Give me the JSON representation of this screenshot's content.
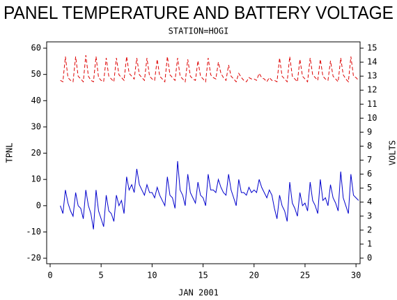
{
  "chart_data": {
    "type": "line",
    "title": "PANEL TEMPERATURE AND BATTERY VOLTAGE",
    "subtitle": "STATION=HOGI",
    "xlabel": "JAN 2001",
    "ylabel": "TPNL",
    "y2label": "VOLTS",
    "x": [
      1,
      1.25,
      1.5,
      1.75,
      2,
      2.25,
      2.5,
      2.75,
      3,
      3.25,
      3.5,
      3.75,
      4,
      4.25,
      4.5,
      4.75,
      5,
      5.25,
      5.5,
      5.75,
      6,
      6.25,
      6.5,
      6.75,
      7,
      7.25,
      7.5,
      7.75,
      8,
      8.25,
      8.5,
      8.75,
      9,
      9.25,
      9.5,
      9.75,
      10,
      10.25,
      10.5,
      10.75,
      11,
      11.25,
      11.5,
      11.75,
      12,
      12.25,
      12.5,
      12.75,
      13,
      13.25,
      13.5,
      13.75,
      14,
      14.25,
      14.5,
      14.75,
      15,
      15.25,
      15.5,
      15.75,
      16,
      16.25,
      16.5,
      16.75,
      17,
      17.25,
      17.5,
      17.75,
      18,
      18.25,
      18.5,
      18.75,
      19,
      19.25,
      19.5,
      19.75,
      20,
      20.25,
      20.5,
      20.75,
      21,
      21.25,
      21.5,
      21.75,
      22,
      22.25,
      22.5,
      22.75,
      23,
      23.25,
      23.5,
      23.75,
      24,
      24.25,
      24.5,
      24.75,
      25,
      25.25,
      25.5,
      25.75,
      26,
      26.25,
      26.5,
      26.75,
      27,
      27.25,
      27.5,
      27.75,
      28,
      28.25,
      28.5,
      28.75,
      29,
      29.25,
      29.5,
      29.75,
      30,
      30.25
    ],
    "series": [
      {
        "name": "TPNL",
        "color": "#0000cc",
        "axis": "y",
        "line_style": "solid",
        "values": [
          0,
          -3,
          6,
          1,
          -2,
          -4,
          5,
          0,
          -1,
          -5,
          6,
          0,
          -3,
          -9,
          6,
          -2,
          -5,
          -8,
          4,
          -2,
          -3,
          -6,
          4,
          0,
          2,
          -3,
          11,
          6,
          8,
          5,
          14,
          8,
          6,
          4,
          8,
          5,
          5,
          3,
          7,
          4,
          2,
          0,
          11,
          4,
          3,
          -1,
          17,
          6,
          4,
          0,
          12,
          5,
          3,
          1,
          9,
          4,
          3,
          0,
          12,
          6,
          6,
          5,
          10,
          7,
          5,
          4,
          12,
          6,
          3,
          0,
          10,
          5,
          5,
          4,
          7,
          5,
          6,
          5,
          10,
          7,
          5,
          3,
          6,
          4,
          -1,
          -5,
          4,
          0,
          -2,
          -6,
          9,
          1,
          -1,
          -4,
          5,
          0,
          1,
          -2,
          9,
          2,
          0,
          -3,
          10,
          2,
          3,
          0,
          8,
          3,
          1,
          -2,
          13,
          3,
          0,
          -3,
          12,
          4,
          3,
          2
        ]
      },
      {
        "name": "VOLTS",
        "color": "#dd0000",
        "axis": "y2",
        "line_style": "dashed",
        "values": [
          12.7,
          12.6,
          14.4,
          12.9,
          12.7,
          12.6,
          14.4,
          13.0,
          12.8,
          12.6,
          14.5,
          13.0,
          12.7,
          12.6,
          14.4,
          12.9,
          12.7,
          12.6,
          14.3,
          13.0,
          12.8,
          12.6,
          14.3,
          13.1,
          12.9,
          12.7,
          14.4,
          13.2,
          13.0,
          12.8,
          14.3,
          13.1,
          12.9,
          12.7,
          14.3,
          13.0,
          12.8,
          12.7,
          14.2,
          13.0,
          12.8,
          12.6,
          14.4,
          13.1,
          12.9,
          12.7,
          14.3,
          13.0,
          12.8,
          12.6,
          14.2,
          13.0,
          12.8,
          12.7,
          14.1,
          13.0,
          12.8,
          12.6,
          14.3,
          13.1,
          12.9,
          12.8,
          14.0,
          13.2,
          12.9,
          12.7,
          13.8,
          13.0,
          12.8,
          12.6,
          13.2,
          12.9,
          12.7,
          12.6,
          12.9,
          12.8,
          12.8,
          12.7,
          13.2,
          12.9,
          12.8,
          12.6,
          12.9,
          12.7,
          12.7,
          12.6,
          14.3,
          13.0,
          12.8,
          12.6,
          14.4,
          13.0,
          12.8,
          12.6,
          14.2,
          13.0,
          12.8,
          12.6,
          14.3,
          13.1,
          12.9,
          12.7,
          14.2,
          13.0,
          12.8,
          12.7,
          14.1,
          13.0,
          12.8,
          12.6,
          14.3,
          13.1,
          12.8,
          12.6,
          14.4,
          13.0,
          12.9,
          12.7
        ]
      }
    ],
    "xlim": [
      -0.34,
      30.4
    ],
    "xticks": [
      0,
      5,
      10,
      15,
      20,
      25,
      30
    ],
    "ylim": [
      -22.1,
      62.4
    ],
    "yticks": [
      -20,
      -10,
      0,
      10,
      20,
      30,
      40,
      50,
      60
    ],
    "y2lim": [
      -0.4,
      15.45
    ],
    "y2ticks": [
      0,
      1,
      2,
      3,
      4,
      5,
      6,
      7,
      8,
      9,
      10,
      11,
      12,
      13,
      14,
      15
    ]
  }
}
